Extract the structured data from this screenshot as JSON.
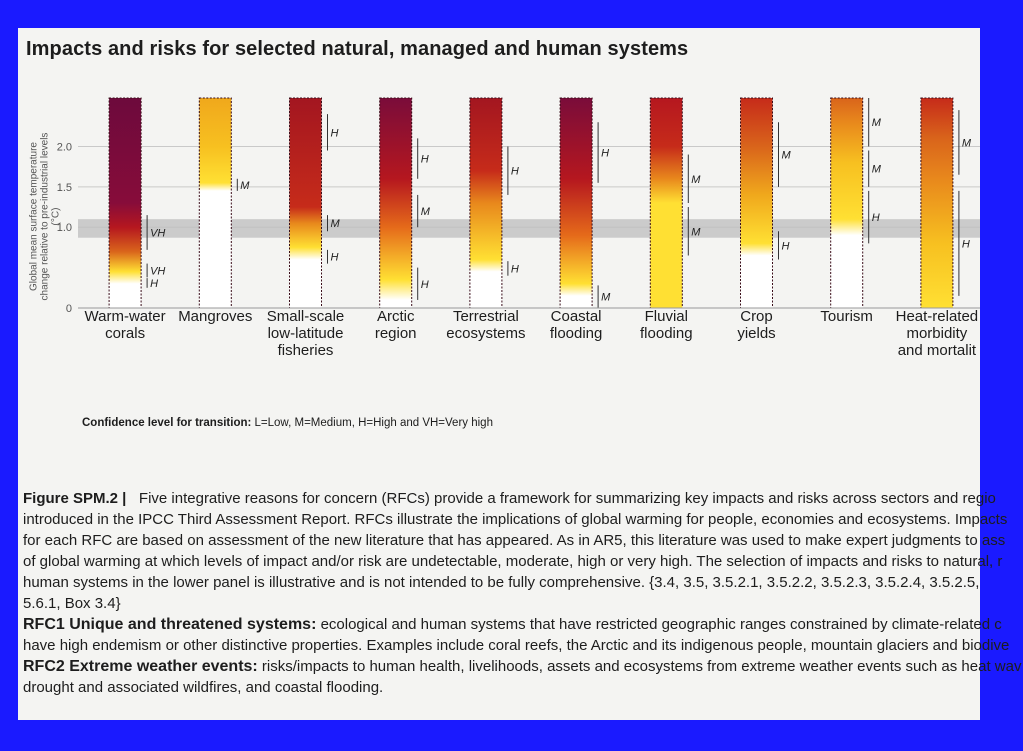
{
  "title": "Impacts and risks for selected natural, managed and human systems",
  "y_axis_label": "Global mean surface temperature change relative to pre-industrial levels (°C)",
  "chart_data": {
    "type": "bar",
    "title": "Impacts and risks for selected natural, managed and human systems",
    "ylabel": "Global mean surface temperature change relative to pre-industrial levels (°C)",
    "ylim": [
      0,
      2.6
    ],
    "yticks": [
      "0",
      "1.0",
      "1.5",
      "2.0"
    ],
    "highlight_band": [
      0.87,
      1.1
    ],
    "categories": [
      "Warm-water corals",
      "Mangroves",
      "Small-scale low-latitude fisheries",
      "Arctic region",
      "Terrestrial ecosystems",
      "Coastal flooding",
      "Fluvial flooding",
      "Crop yields",
      "Tourism",
      "Heat-related morbidity and mortality"
    ],
    "category_labels": [
      [
        "Warm-water",
        "corals"
      ],
      [
        "Mangroves"
      ],
      [
        "Small-scale",
        "low-latitude",
        "fisheries"
      ],
      [
        "Arctic",
        "region"
      ],
      [
        "Terrestrial",
        "ecosystems"
      ],
      [
        "Coastal",
        "flooding"
      ],
      [
        "Fluvial",
        "flooding"
      ],
      [
        "Crop",
        "yields"
      ],
      [
        "Tourism"
      ],
      [
        "Heat-related",
        "morbidity",
        "and mortalit"
      ]
    ],
    "bars": [
      {
        "stops": [
          [
            0,
            "#ffffff"
          ],
          [
            0.3,
            "#ffffff"
          ],
          [
            0.45,
            "#ffe033"
          ],
          [
            0.7,
            "#d9641b"
          ],
          [
            1.0,
            "#b5171f"
          ],
          [
            1.3,
            "#870c3a"
          ],
          [
            2.6,
            "#6d0a3c"
          ]
        ],
        "confidence": [
          {
            "level": "VH",
            "lo": 0.72,
            "hi": 1.15
          },
          {
            "level": "VH",
            "lo": 0.38,
            "hi": 0.55
          },
          {
            "level": "H",
            "lo": 0.25,
            "hi": 0.37
          }
        ]
      },
      {
        "stops": [
          [
            0,
            "#ffffff"
          ],
          [
            1.45,
            "#ffffff"
          ],
          [
            1.55,
            "#ffe033"
          ],
          [
            2.0,
            "#f7c020"
          ],
          [
            2.6,
            "#f0a81c"
          ]
        ],
        "confidence": [
          {
            "level": "M",
            "lo": 1.45,
            "hi": 1.6
          }
        ]
      },
      {
        "stops": [
          [
            0,
            "#ffffff"
          ],
          [
            0.6,
            "#ffffff"
          ],
          [
            0.75,
            "#ffe033"
          ],
          [
            1.05,
            "#e8881c"
          ],
          [
            1.25,
            "#c62b1a"
          ],
          [
            2.6,
            "#a31620"
          ]
        ],
        "confidence": [
          {
            "level": "H",
            "lo": 1.95,
            "hi": 2.4
          },
          {
            "level": "M",
            "lo": 0.95,
            "hi": 1.15
          },
          {
            "level": "H",
            "lo": 0.55,
            "hi": 0.72
          }
        ]
      },
      {
        "stops": [
          [
            0,
            "#ffffff"
          ],
          [
            0.1,
            "#ffffff"
          ],
          [
            0.35,
            "#ffe033"
          ],
          [
            1.0,
            "#e56a1a"
          ],
          [
            1.6,
            "#b5171f"
          ],
          [
            2.6,
            "#7a0c3a"
          ]
        ],
        "confidence": [
          {
            "level": "H",
            "lo": 1.6,
            "hi": 2.1
          },
          {
            "level": "M",
            "lo": 1.0,
            "hi": 1.4
          },
          {
            "level": "H",
            "lo": 0.1,
            "hi": 0.5
          }
        ]
      },
      {
        "stops": [
          [
            0,
            "#ffffff"
          ],
          [
            0.45,
            "#ffffff"
          ],
          [
            0.6,
            "#ffe033"
          ],
          [
            1.3,
            "#e8881c"
          ],
          [
            1.7,
            "#c62b1a"
          ],
          [
            2.6,
            "#a31620"
          ]
        ],
        "confidence": [
          {
            "level": "H",
            "lo": 1.4,
            "hi": 2.0
          },
          {
            "level": "H",
            "lo": 0.4,
            "hi": 0.58
          }
        ]
      },
      {
        "stops": [
          [
            0,
            "#ffffff"
          ],
          [
            0.15,
            "#ffffff"
          ],
          [
            0.3,
            "#ffe033"
          ],
          [
            0.9,
            "#e56a1a"
          ],
          [
            1.6,
            "#b5171f"
          ],
          [
            2.6,
            "#7a0c3a"
          ]
        ],
        "confidence": [
          {
            "level": "H",
            "lo": 1.55,
            "hi": 2.3
          },
          {
            "level": "M",
            "lo": 0.0,
            "hi": 0.28
          }
        ]
      },
      {
        "stops": [
          [
            0,
            "#ffffff"
          ],
          [
            0.0,
            "#ffe033"
          ],
          [
            1.3,
            "#ffe033"
          ],
          [
            1.6,
            "#e8881c"
          ],
          [
            2.0,
            "#c62b1a"
          ],
          [
            2.6,
            "#b5171f"
          ]
        ],
        "confidence": [
          {
            "level": "M",
            "lo": 1.3,
            "hi": 1.9
          },
          {
            "level": "M",
            "lo": 0.65,
            "hi": 1.25
          }
        ]
      },
      {
        "stops": [
          [
            0,
            "#ffffff"
          ],
          [
            0.65,
            "#ffffff"
          ],
          [
            0.8,
            "#ffe033"
          ],
          [
            1.4,
            "#f0a81c"
          ],
          [
            2.0,
            "#d9641b"
          ],
          [
            2.6,
            "#c62b1a"
          ]
        ],
        "confidence": [
          {
            "level": "M",
            "lo": 1.5,
            "hi": 2.3
          },
          {
            "level": "H",
            "lo": 0.6,
            "hi": 0.95
          }
        ]
      },
      {
        "stops": [
          [
            0,
            "#ffffff"
          ],
          [
            0.9,
            "#ffffff"
          ],
          [
            1.1,
            "#ffe033"
          ],
          [
            1.8,
            "#f7c020"
          ],
          [
            2.3,
            "#e8881c"
          ],
          [
            2.6,
            "#d9641b"
          ]
        ],
        "confidence": [
          {
            "level": "M",
            "lo": 2.0,
            "hi": 2.6
          },
          {
            "level": "M",
            "lo": 1.5,
            "hi": 1.95
          },
          {
            "level": "H",
            "lo": 0.8,
            "hi": 1.45
          }
        ]
      },
      {
        "stops": [
          [
            0,
            "#ffffff"
          ],
          [
            0.0,
            "#ffe033"
          ],
          [
            0.8,
            "#f7c020"
          ],
          [
            1.6,
            "#e8881c"
          ],
          [
            2.1,
            "#d9641b"
          ],
          [
            2.6,
            "#c62b1a"
          ]
        ],
        "confidence": [
          {
            "level": "M",
            "lo": 1.65,
            "hi": 2.45
          },
          {
            "level": "H",
            "lo": 0.15,
            "hi": 1.45
          }
        ]
      }
    ]
  },
  "confidence_note": {
    "label": "Confidence level  for transition: ",
    "text": "L=Low, M=Medium, H=High and VH=Very high"
  },
  "caption": {
    "figure_label": "Figure SPM.2 |",
    "lines": [
      "Five integrative reasons for concern (RFCs) provide a framework for summarizing key impacts and risks across sectors and regio",
      "introduced in the IPCC Third Assessment Report. RFCs illustrate the implications of global warming for people, economies and ecosystems. Impacts",
      "for each RFC are based on assessment of the new literature that has appeared. As in AR5, this literature was used to make expert judgments to ass",
      "of global warming at which levels of impact and/or risk are undetectable, moderate, high or very high. The selection of impacts and risks to natural, r",
      "human systems in the lower panel is illustrative and is not intended to be fully comprehensive. {3.4, 3.5, 3.5.2.1, 3.5.2.2, 3.5.2.3, 3.5.2.4, 3.5.2.5,",
      "5.6.1, Box 3.4}"
    ],
    "rfc1_title": "RFC1 Unique and threatened systems:",
    "rfc1_text": " ecological and human systems that have restricted geographic ranges constrained by climate-related c",
    "rfc1_line2": "have high endemism or other distinctive properties. Examples include coral reefs, the Arctic and its indigenous people, mountain glaciers and biodive",
    "rfc2_title": "RFC2 Extreme weather events:",
    "rfc2_text": " risks/impacts to human health, livelihoods, assets and ecosystems from extreme weather events such as heat wav",
    "rfc2_line2": "drought and associated wildfires, and coastal flooding."
  }
}
